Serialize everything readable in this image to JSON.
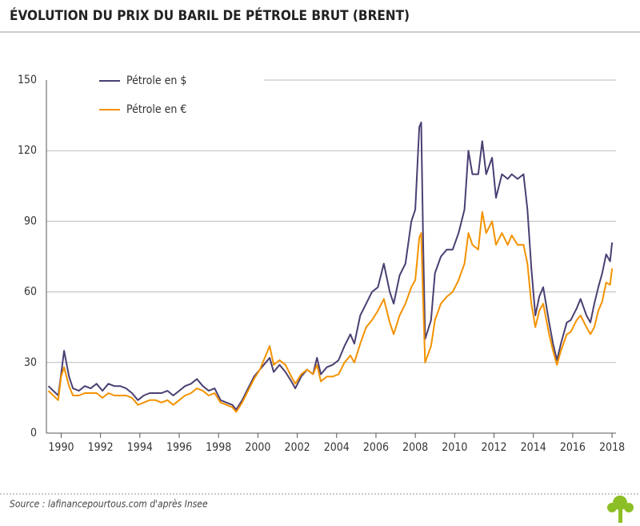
{
  "chart_data": {
    "type": "line",
    "title": "ÉVOLUTION DU PRIX DU BARIL DE PÉTROLE BRUT (BRENT)",
    "source": "Source : lafinancepourtous.com d'après Insee",
    "x": [
      1989.35,
      1989.6,
      1989.85,
      1990.0,
      1990.15,
      1990.4,
      1990.6,
      1990.9,
      1991.2,
      1991.5,
      1991.8,
      1992.1,
      1992.4,
      1992.7,
      1993.0,
      1993.3,
      1993.6,
      1993.9,
      1994.2,
      1994.5,
      1994.8,
      1995.1,
      1995.4,
      1995.7,
      1996.0,
      1996.3,
      1996.6,
      1996.9,
      1997.2,
      1997.5,
      1997.8,
      1998.1,
      1998.4,
      1998.7,
      1998.9,
      1999.2,
      1999.5,
      1999.8,
      2000.1,
      2000.4,
      2000.6,
      2000.8,
      2001.1,
      2001.4,
      2001.7,
      2001.9,
      2002.2,
      2002.5,
      2002.8,
      2003.0,
      2003.2,
      2003.5,
      2003.8,
      2004.1,
      2004.4,
      2004.7,
      2004.9,
      2005.2,
      2005.5,
      2005.8,
      2006.1,
      2006.4,
      2006.7,
      2006.9,
      2007.2,
      2007.5,
      2007.8,
      2008.0,
      2008.2,
      2008.3,
      2008.4,
      2008.5,
      2008.8,
      2009.0,
      2009.3,
      2009.6,
      2009.9,
      2010.2,
      2010.5,
      2010.7,
      2010.9,
      2011.2,
      2011.4,
      2011.6,
      2011.9,
      2012.1,
      2012.4,
      2012.7,
      2012.9,
      2013.2,
      2013.5,
      2013.7,
      2013.9,
      2014.1,
      2014.3,
      2014.5,
      2014.8,
      2015.0,
      2015.2,
      2015.4,
      2015.7,
      2015.9,
      2016.2,
      2016.4,
      2016.7,
      2016.9,
      2017.1,
      2017.3,
      2017.5,
      2017.7,
      2017.9,
      2018.0
    ],
    "series": [
      {
        "name": "Pétrole en $",
        "color": "#4b3f72",
        "values": [
          20,
          18,
          16,
          25,
          35,
          24,
          19,
          18,
          20,
          19,
          21,
          18,
          21,
          20,
          20,
          19,
          17,
          14,
          16,
          17,
          17,
          17,
          18,
          16,
          18,
          20,
          21,
          23,
          20,
          18,
          19,
          14,
          13,
          12,
          10,
          14,
          19,
          24,
          27,
          30,
          32,
          26,
          29,
          26,
          22,
          19,
          24,
          27,
          25,
          32,
          25,
          28,
          29,
          31,
          37,
          42,
          38,
          50,
          55,
          60,
          62,
          72,
          60,
          55,
          67,
          72,
          90,
          95,
          130,
          132,
          80,
          40,
          48,
          68,
          75,
          78,
          78,
          85,
          95,
          120,
          110,
          110,
          124,
          110,
          117,
          100,
          110,
          108,
          110,
          108,
          110,
          95,
          70,
          50,
          58,
          62,
          47,
          38,
          31,
          38,
          47,
          48,
          53,
          57,
          50,
          47,
          55,
          62,
          68,
          76,
          73,
          81
        ]
      },
      {
        "name": "Pétrole en €",
        "color": "#f39200",
        "values": [
          18,
          16,
          14,
          24,
          28,
          20,
          16,
          16,
          17,
          17,
          17,
          15,
          17,
          16,
          16,
          16,
          15,
          12,
          13,
          14,
          14,
          13,
          14,
          12,
          14,
          16,
          17,
          19,
          18,
          16,
          17,
          13,
          12,
          11,
          9,
          13,
          18,
          23,
          27,
          33,
          37,
          29,
          31,
          29,
          24,
          21,
          25,
          27,
          25,
          29,
          22,
          24,
          24,
          25,
          30,
          33,
          30,
          38,
          45,
          48,
          52,
          57,
          47,
          42,
          50,
          55,
          62,
          65,
          83,
          85,
          55,
          30,
          37,
          48,
          55,
          58,
          60,
          65,
          72,
          85,
          80,
          78,
          94,
          85,
          90,
          80,
          85,
          80,
          84,
          80,
          80,
          72,
          55,
          45,
          52,
          55,
          42,
          35,
          29,
          35,
          42,
          43,
          48,
          50,
          45,
          42,
          45,
          52,
          56,
          64,
          63,
          70
        ]
      }
    ],
    "xlim": [
      1989.25,
      2018.2
    ],
    "xticks": [
      1990,
      1992,
      1994,
      1996,
      1998,
      2000,
      2002,
      2004,
      2006,
      2008,
      2010,
      2012,
      2014,
      2016,
      2018
    ],
    "ylim": [
      0,
      150
    ],
    "yticks": [
      0,
      30,
      60,
      90,
      120,
      150
    ],
    "grid": true
  }
}
